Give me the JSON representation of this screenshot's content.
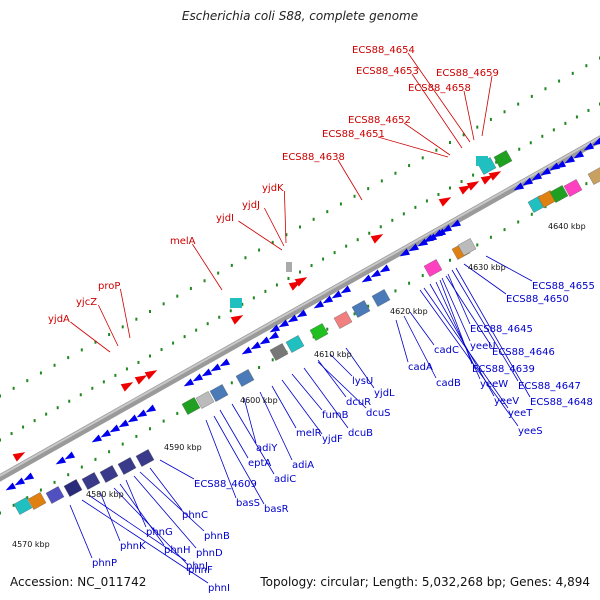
{
  "title": "Escherichia coli S88, complete genome",
  "footer": {
    "accession": "Accession: NC_011742",
    "topology": "Topology: circular; Length: 5,032,268 bp; Genes: 4,894"
  },
  "colors": {
    "forward_label": "#cc0000",
    "reverse_label": "#0000cc",
    "backbone": "#888888",
    "gene_blue": "#0000ee",
    "gene_red": "#ee0000",
    "tick_green": "#228822"
  },
  "scale_ticks": [
    "4570 kbp",
    "4580 kbp",
    "4590 kbp",
    "4600 kbp",
    "4610 kbp",
    "4620 kbp",
    "4630 kbp",
    "4640 kbp"
  ],
  "forward_labels": [
    "yjdA",
    "yjcZ",
    "proP",
    "melA",
    "yjdI",
    "yjdJ",
    "yjdK",
    "ECS88_4638",
    "ECS88_4651",
    "ECS88_4652",
    "ECS88_4658",
    "ECS88_4653",
    "ECS88_4659",
    "ECS88_4654"
  ],
  "reverse_labels": [
    "phnP",
    "phnI",
    "phnJ",
    "phnK",
    "phnF",
    "phnH",
    "phnG",
    "phnD",
    "phnB",
    "phnC",
    "ECS88_4609",
    "basS",
    "basR",
    "eptA",
    "adiC",
    "adiY",
    "adiA",
    "melR",
    "yjdF",
    "fumB",
    "dcuB",
    "dcuS",
    "dcuR",
    "lysU",
    "yjdL",
    "cadA",
    "cadB",
    "cadC",
    "yeeS",
    "yeeT",
    "yeeV",
    "yeeW",
    "ECS88_4639",
    "yeeU",
    "ECS88_4646",
    "ECS88_4645",
    "ECS88_4647",
    "ECS88_4648",
    "ECS88_4650",
    "ECS88_4655"
  ]
}
